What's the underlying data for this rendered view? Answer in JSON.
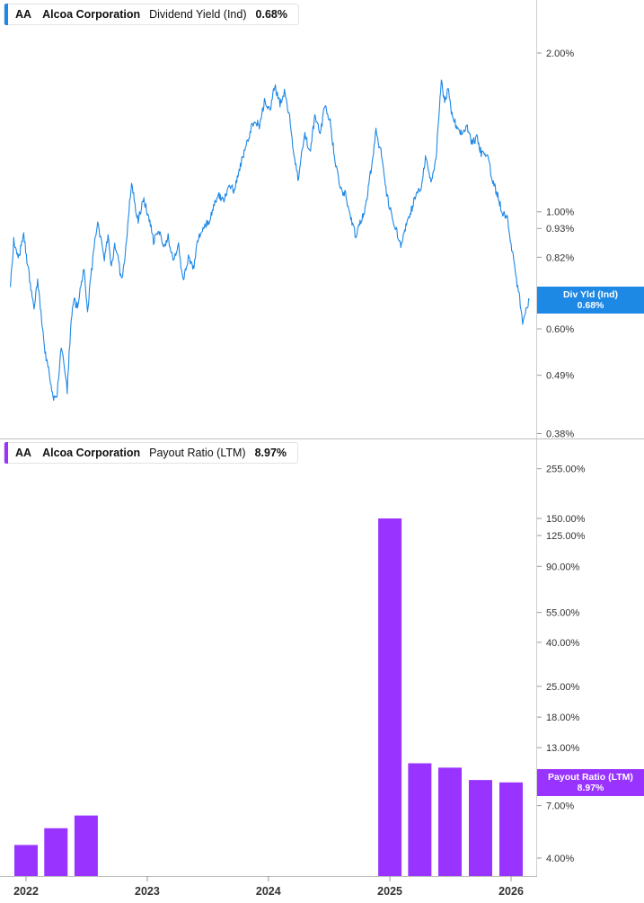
{
  "colors": {
    "top_series": "#1e88e5",
    "bottom_series": "#9933ff",
    "grid": "#cccccc",
    "axis_text": "#333333"
  },
  "top_panel": {
    "ticker": "AA",
    "company": "Alcoa Corporation",
    "metric": "Dividend Yield (Ind)",
    "value": "0.68%",
    "tag_label": "Div Yld (Ind)",
    "tag_value": "0.68%"
  },
  "bottom_panel": {
    "ticker": "AA",
    "company": "Alcoa Corporation",
    "metric": "Payout Ratio (LTM)",
    "value": "8.97%",
    "tag_label": "Payout Ratio (LTM)",
    "tag_value": "8.97%"
  },
  "x_axis": {
    "tick_labels": [
      "2022",
      "2023",
      "2024",
      "2025",
      "2026"
    ]
  },
  "chart_data": [
    {
      "type": "line",
      "title": "Dividend Yield (Ind)",
      "y_scale": "log",
      "ylim": [
        0.38,
        2.35
      ],
      "y_ticks": [
        0.38,
        0.49,
        0.6,
        0.82,
        0.93,
        1.0,
        2.0
      ],
      "y_tick_labels": [
        "0.38%",
        "0.49%",
        "0.60%",
        "0.82%",
        "0.93%",
        "1.00%",
        "2.00%"
      ],
      "hidden_tick_label": "0.7",
      "xlim": [
        "2021-11-15",
        "2026-02-25"
      ],
      "series": [
        {
          "name": "Dividend Yield (Ind)",
          "points": [
            [
              "2021-11-15",
              0.72
            ],
            [
              "2021-11-25",
              0.88
            ],
            [
              "2021-12-10",
              0.82
            ],
            [
              "2021-12-25",
              0.9
            ],
            [
              "2022-01-10",
              0.76
            ],
            [
              "2022-01-25",
              0.66
            ],
            [
              "2022-02-05",
              0.74
            ],
            [
              "2022-02-15",
              0.64
            ],
            [
              "2022-02-25",
              0.55
            ],
            [
              "2022-03-10",
              0.5
            ],
            [
              "2022-03-25",
              0.44
            ],
            [
              "2022-04-05",
              0.45
            ],
            [
              "2022-04-15",
              0.55
            ],
            [
              "2022-04-25",
              0.52
            ],
            [
              "2022-05-05",
              0.46
            ],
            [
              "2022-05-15",
              0.6
            ],
            [
              "2022-05-25",
              0.68
            ],
            [
              "2022-06-05",
              0.66
            ],
            [
              "2022-06-15",
              0.72
            ],
            [
              "2022-06-25",
              0.78
            ],
            [
              "2022-07-05",
              0.64
            ],
            [
              "2022-07-15",
              0.75
            ],
            [
              "2022-07-25",
              0.85
            ],
            [
              "2022-08-05",
              0.96
            ],
            [
              "2022-08-15",
              0.88
            ],
            [
              "2022-08-25",
              0.82
            ],
            [
              "2022-09-05",
              0.9
            ],
            [
              "2022-09-15",
              0.78
            ],
            [
              "2022-09-25",
              0.86
            ],
            [
              "2022-10-05",
              0.82
            ],
            [
              "2022-10-15",
              0.74
            ],
            [
              "2022-10-25",
              0.8
            ],
            [
              "2022-11-05",
              0.98
            ],
            [
              "2022-11-15",
              1.13
            ],
            [
              "2022-11-25",
              1.03
            ],
            [
              "2022-12-05",
              0.96
            ],
            [
              "2022-12-20",
              1.06
            ],
            [
              "2023-01-05",
              0.98
            ],
            [
              "2023-01-20",
              0.88
            ],
            [
              "2023-02-05",
              0.92
            ],
            [
              "2023-02-20",
              0.86
            ],
            [
              "2023-03-05",
              0.9
            ],
            [
              "2023-03-20",
              0.8
            ],
            [
              "2023-04-05",
              0.86
            ],
            [
              "2023-04-20",
              0.74
            ],
            [
              "2023-05-05",
              0.82
            ],
            [
              "2023-05-20",
              0.78
            ],
            [
              "2023-06-05",
              0.9
            ],
            [
              "2023-06-20",
              0.94
            ],
            [
              "2023-07-05",
              0.96
            ],
            [
              "2023-07-20",
              1.03
            ],
            [
              "2023-08-05",
              1.08
            ],
            [
              "2023-08-20",
              1.05
            ],
            [
              "2023-09-05",
              1.12
            ],
            [
              "2023-09-20",
              1.1
            ],
            [
              "2023-10-05",
              1.2
            ],
            [
              "2023-10-20",
              1.3
            ],
            [
              "2023-11-05",
              1.4
            ],
            [
              "2023-11-20",
              1.5
            ],
            [
              "2023-12-05",
              1.45
            ],
            [
              "2023-12-20",
              1.62
            ],
            [
              "2024-01-05",
              1.55
            ],
            [
              "2024-01-20",
              1.74
            ],
            [
              "2024-02-05",
              1.6
            ],
            [
              "2024-02-20",
              1.7
            ],
            [
              "2024-03-05",
              1.5
            ],
            [
              "2024-03-20",
              1.25
            ],
            [
              "2024-04-01",
              1.15
            ],
            [
              "2024-04-10",
              1.28
            ],
            [
              "2024-04-20",
              1.4
            ],
            [
              "2024-05-05",
              1.3
            ],
            [
              "2024-05-20",
              1.52
            ],
            [
              "2024-06-05",
              1.4
            ],
            [
              "2024-06-20",
              1.6
            ],
            [
              "2024-07-05",
              1.48
            ],
            [
              "2024-07-20",
              1.25
            ],
            [
              "2024-08-05",
              1.1
            ],
            [
              "2024-08-20",
              1.08
            ],
            [
              "2024-09-05",
              0.98
            ],
            [
              "2024-09-20",
              0.9
            ],
            [
              "2024-10-05",
              0.96
            ],
            [
              "2024-10-20",
              1.02
            ],
            [
              "2024-11-05",
              1.2
            ],
            [
              "2024-11-20",
              1.42
            ],
            [
              "2024-12-05",
              1.3
            ],
            [
              "2024-12-20",
              1.1
            ],
            [
              "2025-01-05",
              0.99
            ],
            [
              "2025-01-20",
              0.92
            ],
            [
              "2025-02-05",
              0.86
            ],
            [
              "2025-02-20",
              0.96
            ],
            [
              "2025-03-05",
              1.0
            ],
            [
              "2025-03-20",
              1.08
            ],
            [
              "2025-04-05",
              1.12
            ],
            [
              "2025-04-20",
              1.28
            ],
            [
              "2025-05-05",
              1.14
            ],
            [
              "2025-05-20",
              1.26
            ],
            [
              "2025-06-05",
              1.8
            ],
            [
              "2025-06-15",
              1.6
            ],
            [
              "2025-06-25",
              1.72
            ],
            [
              "2025-07-05",
              1.55
            ],
            [
              "2025-07-20",
              1.45
            ],
            [
              "2025-08-05",
              1.4
            ],
            [
              "2025-08-20",
              1.46
            ],
            [
              "2025-09-05",
              1.35
            ],
            [
              "2025-09-20",
              1.38
            ],
            [
              "2025-10-05",
              1.28
            ],
            [
              "2025-10-20",
              1.3
            ],
            [
              "2025-11-05",
              1.15
            ],
            [
              "2025-11-20",
              1.08
            ],
            [
              "2025-12-05",
              1.0
            ],
            [
              "2025-12-20",
              0.98
            ],
            [
              "2026-01-05",
              0.84
            ],
            [
              "2026-01-15",
              0.75
            ],
            [
              "2026-01-25",
              0.7
            ],
            [
              "2026-02-05",
              0.62
            ],
            [
              "2026-02-15",
              0.66
            ],
            [
              "2026-02-25",
              0.68
            ]
          ]
        }
      ]
    },
    {
      "type": "bar",
      "title": "Payout Ratio (LTM)",
      "y_scale": "log",
      "ylim": [
        3.6,
        300
      ],
      "y_ticks": [
        4,
        7,
        13,
        18,
        25,
        40,
        55,
        90,
        125,
        150,
        255
      ],
      "y_tick_labels": [
        "4.00%",
        "7.00%",
        "13.00%",
        "18.00%",
        "25.00%",
        "40.00%",
        "55.00%",
        "90.00%",
        "125.00%",
        "150.00%",
        "255.00%"
      ],
      "hidden_tick_label": "8.00%",
      "series": [
        {
          "name": "Payout Ratio (LTM)",
          "bars": [
            {
              "date": "2022-01-01",
              "value": 4.6
            },
            {
              "date": "2022-04-01",
              "value": 5.5
            },
            {
              "date": "2022-07-01",
              "value": 6.3
            },
            {
              "date": "2025-01-01",
              "value": 150.0
            },
            {
              "date": "2025-04-01",
              "value": 11.0
            },
            {
              "date": "2025-07-01",
              "value": 10.5
            },
            {
              "date": "2025-10-01",
              "value": 9.2
            },
            {
              "date": "2026-01-01",
              "value": 8.97
            }
          ]
        }
      ]
    }
  ]
}
